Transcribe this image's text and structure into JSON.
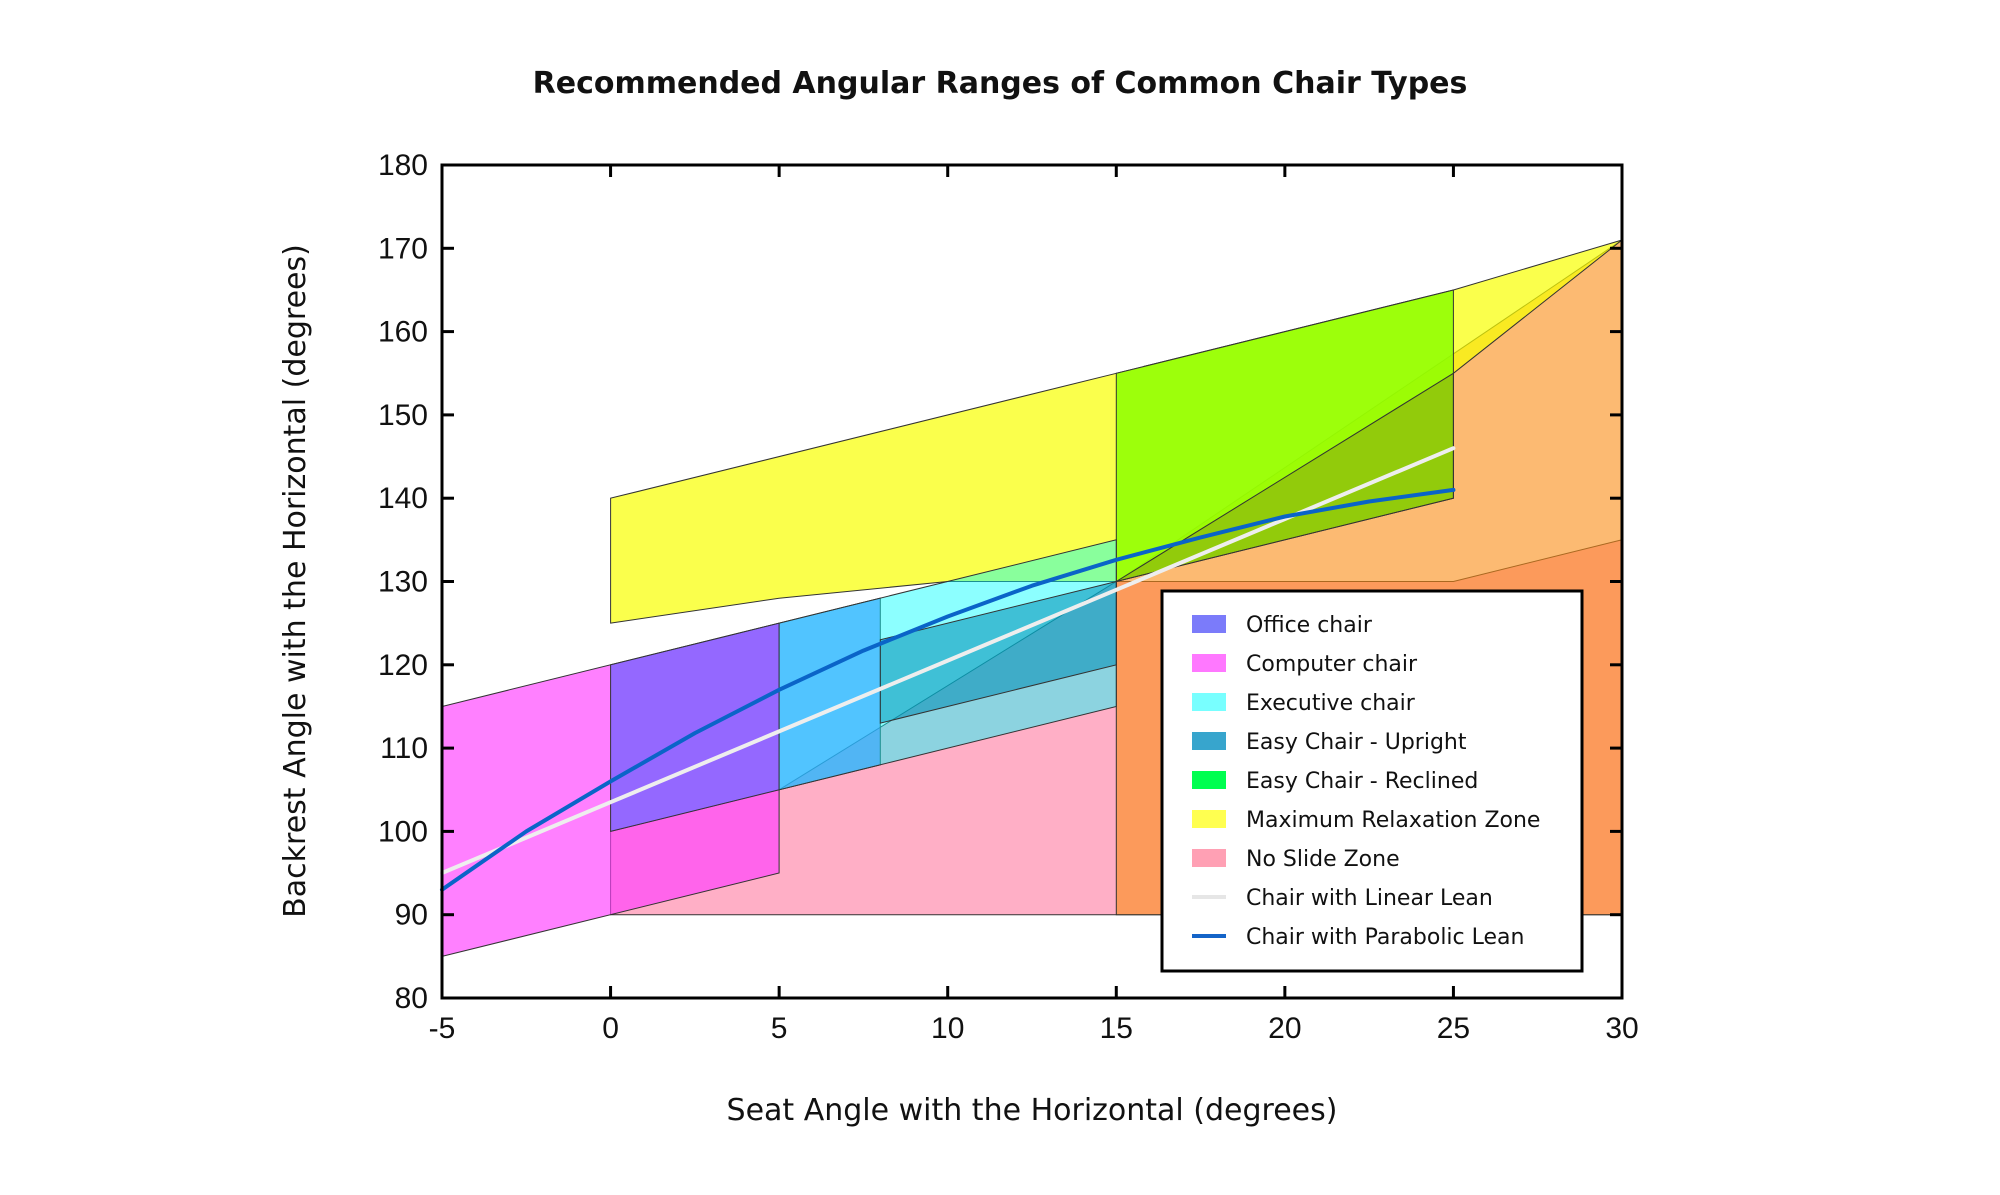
{
  "chart_data": {
    "type": "area",
    "title": "Recommended Angular Ranges of Common Chair Types",
    "xlabel": "Seat Angle with the Horizontal (degrees)",
    "ylabel": "Backrest Angle with the Horizontal (degrees)",
    "xlim": [
      -5,
      30
    ],
    "ylim": [
      80,
      180
    ],
    "xticks": [
      "-5",
      "0",
      "5",
      "10",
      "15",
      "20",
      "25",
      "30"
    ],
    "yticks": [
      "80",
      "90",
      "100",
      "110",
      "120",
      "130",
      "140",
      "150",
      "160",
      "170",
      "180"
    ],
    "grid": false,
    "legend_position": "lower-right",
    "regions": [
      {
        "name": "No Slide Zone",
        "color": "#FF6E98",
        "opacity": 0.55,
        "polygon": [
          [
            0,
            90
          ],
          [
            30,
            90
          ],
          [
            30,
            135
          ],
          [
            25,
            130
          ],
          [
            15,
            130
          ],
          [
            5,
            105
          ],
          [
            0,
            100
          ]
        ]
      },
      {
        "name": "No Slide Zone",
        "color": "#FA8C14",
        "opacity": 0.6,
        "polygon": [
          [
            15,
            130
          ],
          [
            30,
            171
          ],
          [
            30,
            90
          ],
          [
            15,
            90
          ]
        ]
      },
      {
        "name": "Maximum Relaxation Zone",
        "color": "#F8FF00",
        "opacity": 0.7,
        "polygon": [
          [
            0,
            125
          ],
          [
            5,
            128
          ],
          [
            10,
            130
          ],
          [
            15,
            130
          ],
          [
            25,
            155
          ],
          [
            30,
            171
          ],
          [
            25,
            165
          ],
          [
            15,
            155
          ],
          [
            0,
            140
          ]
        ]
      },
      {
        "name": "Easy Chair - Reclined",
        "color": "#8CFF00",
        "opacity": 0.85,
        "polygon": [
          [
            15,
            130
          ],
          [
            25,
            140
          ],
          [
            25,
            165
          ],
          [
            15,
            155
          ]
        ]
      },
      {
        "name": "Computer chair",
        "color": "#FF3CFF",
        "opacity": 0.65,
        "polygon": [
          [
            -5,
            85
          ],
          [
            5,
            95
          ],
          [
            5,
            125
          ],
          [
            -5,
            115
          ]
        ]
      },
      {
        "name": "Office chair",
        "color": "#5A5AFF",
        "opacity": 0.65,
        "polygon": [
          [
            0,
            100
          ],
          [
            8,
            108
          ],
          [
            8,
            128
          ],
          [
            0,
            120
          ]
        ]
      },
      {
        "name": "Executive chair",
        "color": "#00FFFF",
        "opacity": 0.45,
        "polygon": [
          [
            5,
            105
          ],
          [
            15,
            115
          ],
          [
            15,
            135
          ],
          [
            5,
            125
          ]
        ]
      },
      {
        "name": "Easy Chair - Upright",
        "color": "#008CB4",
        "opacity": 0.55,
        "polygon": [
          [
            8,
            113
          ],
          [
            15,
            120
          ],
          [
            15,
            130
          ],
          [
            8,
            123
          ]
        ]
      },
      {
        "name": "Maximum Relaxation Zone",
        "color": "#7D7D00",
        "opacity": 0.35,
        "polygon": [
          [
            15,
            130
          ],
          [
            25,
            140
          ],
          [
            25,
            155
          ]
        ]
      }
    ],
    "series": [
      {
        "name": "Chair with Linear Lean",
        "color": "#EEEEEE",
        "x": [
          -5,
          0,
          5,
          10,
          15,
          20,
          25
        ],
        "y": [
          95,
          103.5,
          112,
          120.5,
          129,
          137.5,
          146
        ]
      },
      {
        "name": "Chair with Parabolic Lean",
        "color": "#0A64C8",
        "x": [
          -5,
          -2.5,
          0,
          2.5,
          5,
          7.5,
          10,
          12.5,
          15,
          17.5,
          20,
          22.5,
          25
        ],
        "y": [
          93,
          100,
          106,
          111.8,
          117,
          121.7,
          125.8,
          129.5,
          132.6,
          135.3,
          137.8,
          139.6,
          141
        ]
      }
    ],
    "legend": [
      {
        "label": "Office chair",
        "color": "#7B7BFA",
        "kind": "box"
      },
      {
        "label": "Computer chair",
        "color": "#FF78FF",
        "kind": "box"
      },
      {
        "label": "Executive chair",
        "color": "#78FFFF",
        "kind": "box"
      },
      {
        "label": "Easy Chair - Upright",
        "color": "#37A5CD",
        "kind": "box"
      },
      {
        "label": "Easy Chair - Reclined",
        "color": "#00FF50",
        "kind": "box"
      },
      {
        "label": "Maximum Relaxation Zone",
        "color": "#FFFF50",
        "kind": "box"
      },
      {
        "label": "No Slide Zone",
        "color": "#FFA0B4",
        "kind": "box"
      },
      {
        "label": "Chair with Linear Lean",
        "color": "#E6E6E6",
        "kind": "line"
      },
      {
        "label": "Chair with Parabolic Lean",
        "color": "#1464C8",
        "kind": "line"
      }
    ]
  }
}
